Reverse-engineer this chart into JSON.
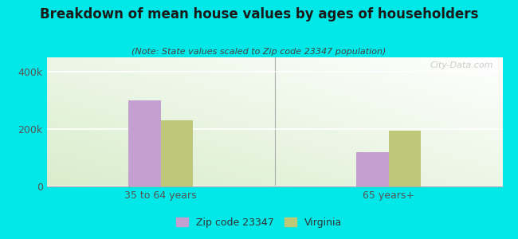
{
  "title": "Breakdown of mean house values by ages of householders",
  "subtitle": "(Note: State values scaled to Zip code 23347 population)",
  "categories": [
    "35 to 64 years",
    "65 years+"
  ],
  "zip_values": [
    300000,
    120000
  ],
  "state_values": [
    230000,
    195000
  ],
  "zip_color": "#c4a0d0",
  "state_color": "#bfc878",
  "zip_label": "Zip code 23347",
  "state_label": "Virginia",
  "ylim": [
    0,
    450000
  ],
  "yticks": [
    0,
    200000,
    400000
  ],
  "ytick_labels": [
    "0",
    "200k",
    "400k"
  ],
  "background_color": "#00e8e8",
  "bar_width": 0.28,
  "watermark": "City-Data.com",
  "title_fontsize": 12,
  "subtitle_fontsize": 8
}
